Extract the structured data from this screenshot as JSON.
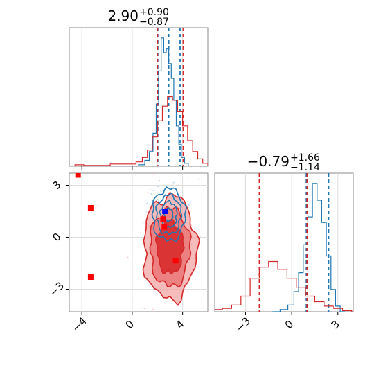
{
  "chart_data": [
    {
      "type": "histogram",
      "panel": "marginal-1",
      "title": {
        "main": "2.90",
        "sup": "+0.90",
        "sub": "−0.87"
      },
      "xlim": [
        -5,
        6
      ],
      "series": [
        {
          "name": "",
          "color": "#1f77b4",
          "median": 2.9,
          "lo": 2.03,
          "hi": 3.8,
          "x": [
            0.2,
            0.8,
            1.2,
            1.5,
            1.8,
            2.0,
            2.2,
            2.4,
            2.6,
            2.8,
            3.0,
            3.2,
            3.4,
            3.6,
            3.8,
            4.0,
            4.3,
            4.6
          ],
          "counts": [
            0,
            2,
            8,
            20,
            45,
            85,
            130,
            175,
            155,
            160,
            140,
            120,
            90,
            55,
            30,
            12,
            4,
            0
          ]
        },
        {
          "name": "",
          "color": "#d62728",
          "lo": 2.0,
          "hi": 4.05,
          "x": [
            -4.2,
            -3.5,
            0.0,
            0.6,
            1.0,
            1.4,
            1.8,
            2.2,
            2.6,
            3.0,
            3.4,
            3.8,
            4.2,
            4.6,
            5.0,
            5.4,
            5.8
          ],
          "counts": [
            2,
            1,
            3,
            6,
            12,
            22,
            40,
            62,
            82,
            95,
            90,
            75,
            55,
            35,
            20,
            10,
            4
          ]
        }
      ]
    },
    {
      "type": "contour",
      "panel": "joint",
      "xticks": [
        -4,
        0,
        4
      ],
      "xtick_labels": [
        "−4",
        "0",
        "4"
      ],
      "yticks": [
        3,
        0,
        -3
      ],
      "ytick_labels": [
        "3",
        "0",
        "−3"
      ],
      "xlim": [
        -5,
        6
      ],
      "ylim": [
        -4.3,
        3.7
      ],
      "blue_contours": {
        "center": [
          2.9,
          1.3
        ],
        "sigma": [
          0.65,
          0.75
        ],
        "color": "#1f77b4"
      },
      "red_filled": {
        "center": [
          3.0,
          -0.6
        ],
        "sigma": [
          1.05,
          1.5
        ],
        "color": "#d62728",
        "fill": "#f2a0a0"
      },
      "blue_marker": [
        2.6,
        1.5
      ],
      "red_markers": [
        [
          -4.3,
          3.6
        ],
        [
          -3.3,
          1.7
        ],
        [
          2.45,
          1.05
        ],
        [
          2.55,
          0.6
        ],
        [
          3.45,
          -1.35
        ],
        [
          -3.3,
          -2.3
        ]
      ]
    },
    {
      "type": "histogram",
      "panel": "marginal-2",
      "title": {
        "main": "−0.79",
        "sup": "+1.66",
        "sub": "−1.14"
      },
      "xticks": [
        -3,
        0,
        3
      ],
      "xtick_labels": [
        "−3",
        "0",
        "3"
      ],
      "xlim": [
        -5,
        4
      ],
      "series": [
        {
          "name": "",
          "color": "#1f77b4",
          "lo": 0.95,
          "hi": 2.4,
          "x": [
            -1.0,
            -0.5,
            0.0,
            0.3,
            0.6,
            0.9,
            1.2,
            1.5,
            1.8,
            2.1,
            2.4,
            2.7,
            3.0,
            3.3
          ],
          "counts": [
            0,
            2,
            6,
            18,
            35,
            60,
            85,
            115,
            100,
            80,
            50,
            20,
            5,
            0
          ]
        },
        {
          "name": "",
          "color": "#d62728",
          "lo": -2.1,
          "hi": 1.0,
          "x": [
            -4.8,
            -4.2,
            -3.6,
            -3.0,
            -2.4,
            -1.8,
            -1.2,
            -0.6,
            0.0,
            0.6,
            1.2,
            1.8,
            2.4,
            3.0,
            3.6
          ],
          "counts": [
            2,
            3,
            6,
            14,
            30,
            40,
            45,
            38,
            30,
            22,
            14,
            9,
            5,
            3,
            1
          ]
        }
      ]
    }
  ]
}
